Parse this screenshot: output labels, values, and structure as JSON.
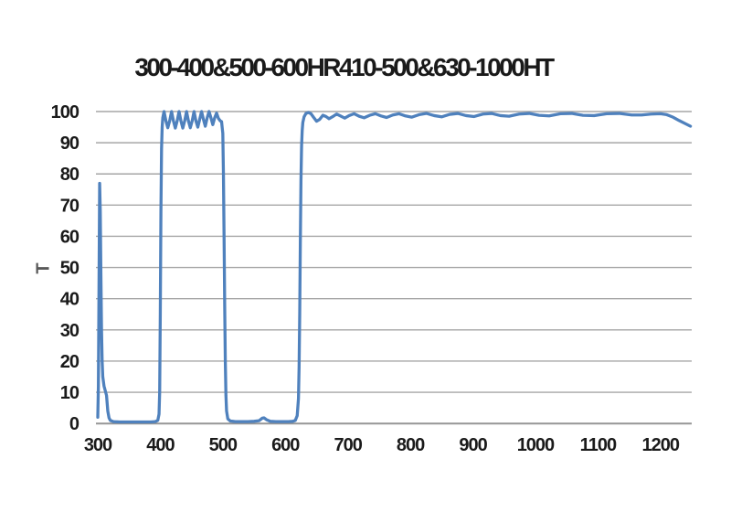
{
  "chart_data": {
    "type": "line",
    "title": "300-400&500-600HR410-500&630-1000HT",
    "xlabel": "",
    "ylabel": "T",
    "xlim": [
      300,
      1250
    ],
    "ylim": [
      0,
      100
    ],
    "x_ticks": [
      300,
      400,
      500,
      600,
      700,
      800,
      900,
      1000,
      1100,
      1200
    ],
    "y_ticks": [
      0,
      10,
      20,
      30,
      40,
      50,
      60,
      70,
      80,
      90,
      100
    ],
    "grid": "horizontal-only",
    "legend_position": "none",
    "colors": {
      "series_line": "#4F81BD",
      "gridline": "#a6a6a6",
      "axis_line": "#969696",
      "title_text": "#1a1a1a",
      "tick_text": "#1a1a1a",
      "axis_title_text": "#595959",
      "background": "#ffffff"
    },
    "series": [
      {
        "name": "T",
        "color": "#4F81BD",
        "points": [
          [
            300,
            2
          ],
          [
            301,
            12
          ],
          [
            302,
            45
          ],
          [
            303,
            77
          ],
          [
            304,
            68
          ],
          [
            305,
            48
          ],
          [
            306,
            30
          ],
          [
            307,
            20
          ],
          [
            308,
            15
          ],
          [
            310,
            12
          ],
          [
            312,
            10.5
          ],
          [
            314,
            9
          ],
          [
            316,
            4
          ],
          [
            318,
            1.8
          ],
          [
            320,
            1
          ],
          [
            325,
            0.6
          ],
          [
            335,
            0.5
          ],
          [
            345,
            0.5
          ],
          [
            355,
            0.5
          ],
          [
            365,
            0.5
          ],
          [
            375,
            0.5
          ],
          [
            385,
            0.5
          ],
          [
            392,
            0.6
          ],
          [
            396,
            1
          ],
          [
            398,
            3
          ],
          [
            399,
            10
          ],
          [
            400,
            35
          ],
          [
            401,
            68
          ],
          [
            402,
            88
          ],
          [
            403,
            95
          ],
          [
            404,
            98
          ],
          [
            406,
            100
          ],
          [
            409,
            97
          ],
          [
            412,
            94.8
          ],
          [
            415,
            97
          ],
          [
            418,
            100
          ],
          [
            421,
            97
          ],
          [
            424,
            94.7
          ],
          [
            427,
            97
          ],
          [
            430,
            100
          ],
          [
            433,
            97
          ],
          [
            436,
            94.7
          ],
          [
            439,
            97
          ],
          [
            442,
            100
          ],
          [
            445,
            97
          ],
          [
            448,
            94.8
          ],
          [
            451,
            97
          ],
          [
            454,
            100
          ],
          [
            457,
            97
          ],
          [
            460,
            95
          ],
          [
            463,
            97.5
          ],
          [
            466,
            100
          ],
          [
            469,
            97.5
          ],
          [
            472,
            95.3
          ],
          [
            475,
            98
          ],
          [
            478,
            100
          ],
          [
            481,
            98
          ],
          [
            484,
            95.8
          ],
          [
            487,
            98
          ],
          [
            490,
            99.5
          ],
          [
            493,
            97.8
          ],
          [
            496,
            97
          ],
          [
            498,
            96.8
          ],
          [
            500,
            93
          ],
          [
            501,
            80
          ],
          [
            502,
            60
          ],
          [
            503,
            38
          ],
          [
            504,
            20
          ],
          [
            505,
            9
          ],
          [
            506,
            4
          ],
          [
            508,
            1.5
          ],
          [
            512,
            0.8
          ],
          [
            520,
            0.6
          ],
          [
            530,
            0.6
          ],
          [
            540,
            0.6
          ],
          [
            550,
            0.7
          ],
          [
            558,
            0.9
          ],
          [
            563,
            1.7
          ],
          [
            566,
            1.8
          ],
          [
            570,
            1.2
          ],
          [
            576,
            0.7
          ],
          [
            585,
            0.6
          ],
          [
            595,
            0.6
          ],
          [
            605,
            0.6
          ],
          [
            612,
            0.7
          ],
          [
            616,
            1
          ],
          [
            619,
            2.5
          ],
          [
            621,
            8
          ],
          [
            622,
            18
          ],
          [
            623,
            35
          ],
          [
            624,
            58
          ],
          [
            625,
            78
          ],
          [
            626,
            89
          ],
          [
            627,
            94
          ],
          [
            628,
            96.5
          ],
          [
            630,
            98.3
          ],
          [
            633,
            99.4
          ],
          [
            637,
            99.7
          ],
          [
            641,
            99.3
          ],
          [
            645,
            98.2
          ],
          [
            650,
            96.9
          ],
          [
            655,
            97.5
          ],
          [
            660,
            98.8
          ],
          [
            665,
            98.4
          ],
          [
            670,
            97.7
          ],
          [
            676,
            98.4
          ],
          [
            682,
            99.2
          ],
          [
            688,
            98.6
          ],
          [
            695,
            97.9
          ],
          [
            702,
            98.7
          ],
          [
            710,
            99.3
          ],
          [
            718,
            98.5
          ],
          [
            726,
            98.0
          ],
          [
            735,
            98.8
          ],
          [
            744,
            99.3
          ],
          [
            753,
            98.6
          ],
          [
            762,
            98.1
          ],
          [
            772,
            98.9
          ],
          [
            782,
            99.3
          ],
          [
            792,
            98.6
          ],
          [
            802,
            98.2
          ],
          [
            814,
            99.0
          ],
          [
            826,
            99.4
          ],
          [
            838,
            98.7
          ],
          [
            850,
            98.3
          ],
          [
            863,
            99.1
          ],
          [
            876,
            99.4
          ],
          [
            889,
            98.7
          ],
          [
            902,
            98.4
          ],
          [
            916,
            99.2
          ],
          [
            930,
            99.4
          ],
          [
            944,
            98.7
          ],
          [
            958,
            98.5
          ],
          [
            974,
            99.2
          ],
          [
            990,
            99.4
          ],
          [
            1006,
            98.8
          ],
          [
            1022,
            98.6
          ],
          [
            1040,
            99.3
          ],
          [
            1058,
            99.4
          ],
          [
            1076,
            98.8
          ],
          [
            1094,
            98.7
          ],
          [
            1114,
            99.3
          ],
          [
            1134,
            99.4
          ],
          [
            1154,
            98.9
          ],
          [
            1170,
            98.9
          ],
          [
            1185,
            99.2
          ],
          [
            1200,
            99.3
          ],
          [
            1210,
            99.0
          ],
          [
            1220,
            98.2
          ],
          [
            1230,
            97.1
          ],
          [
            1240,
            96.1
          ],
          [
            1248,
            95.3
          ]
        ]
      }
    ]
  }
}
